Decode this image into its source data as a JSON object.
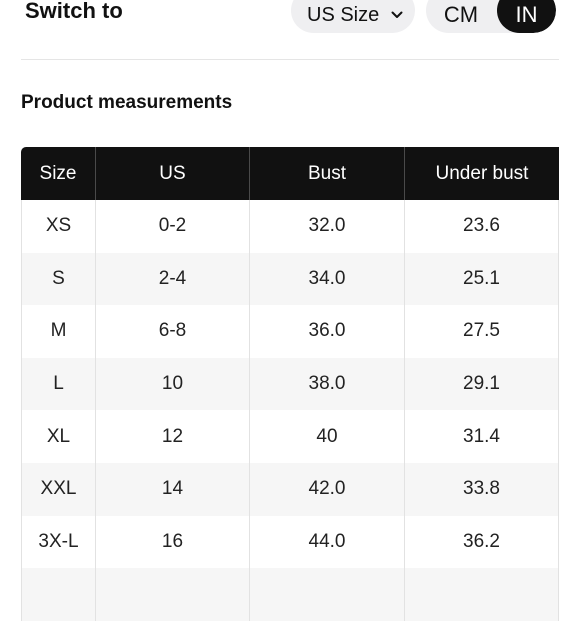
{
  "header": {
    "switch_label": "Switch to",
    "size_select": {
      "value": "US Size",
      "icon": "chevron-down-icon"
    },
    "unit_toggle": {
      "options": [
        "CM",
        "IN"
      ],
      "selected": "IN"
    }
  },
  "section_title": "Product measurements",
  "table": {
    "columns": [
      "Size",
      "US",
      "Bust",
      "Under bust"
    ],
    "rows": [
      [
        "XS",
        "0-2",
        "32.0",
        "23.6"
      ],
      [
        "S",
        "2-4",
        "34.0",
        "25.1"
      ],
      [
        "M",
        "6-8",
        "36.0",
        "27.5"
      ],
      [
        "L",
        "10",
        "38.0",
        "29.1"
      ],
      [
        "XL",
        "12",
        "40",
        "31.4"
      ],
      [
        "XXL",
        "14",
        "42.0",
        "33.8"
      ],
      [
        "3X-L",
        "16",
        "44.0",
        "36.2"
      ]
    ]
  },
  "colors": {
    "header_bg": "#111111",
    "header_text": "#ffffff",
    "stripe": "#f6f6f6",
    "pill_bg": "#efeff1"
  }
}
